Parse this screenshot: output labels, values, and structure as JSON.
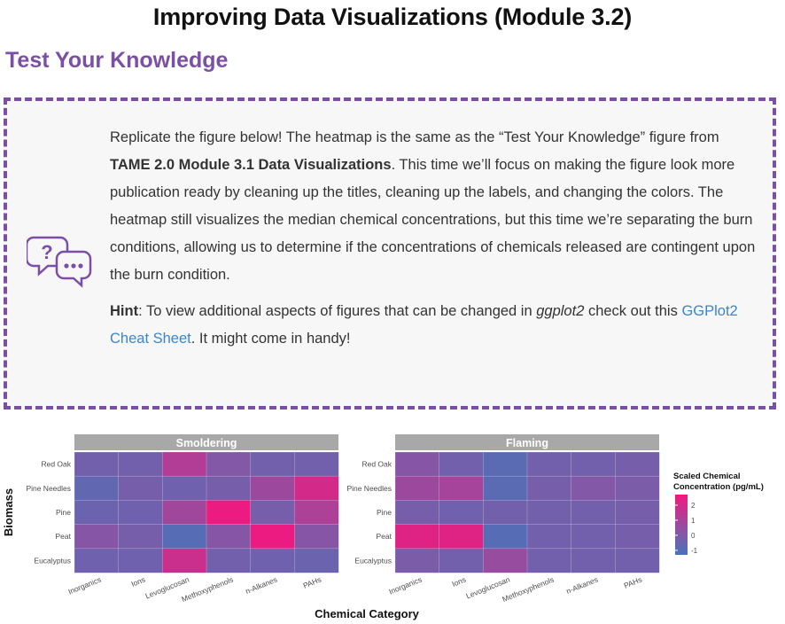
{
  "page": {
    "title": "Improving Data Visualizations (Module 3.2)",
    "section_title": "Test Your Knowledge"
  },
  "callout": {
    "icon": "question-speech-bubbles-icon",
    "accent_color": "#7b4fa6",
    "p1_a": "Replicate the figure below! The heatmap is the same as the “Test Your Knowledge” figure from ",
    "p1_bold": "TAME 2.0 Module 3.1 Data Visualizations",
    "p1_b": ". This time we’ll focus on making the figure look more publication ready by cleaning up the titles, cleaning up the labels, and changing the colors. The heatmap still visualizes the median chemical concentrations, but this time we’re separating the burn conditions, allowing us to determine if the concentrations of chemicals released are contingent upon the burn condition.",
    "hint_label": "Hint",
    "hint_a": ": To view additional aspects of figures that can be changed in ",
    "hint_italic": "ggplot2",
    "hint_b": " check out this ",
    "hint_link": "GGPlot2 Cheat Sheet",
    "hint_c": ". It might come in handy!"
  },
  "chart_data": {
    "type": "heatmap",
    "xlabel": "Chemical Category",
    "ylabel": "Biomass",
    "categories": [
      "Inorganics",
      "Ions",
      "Levoglucosan",
      "Methoxyphenols",
      "n-Alkanes",
      "PAHs"
    ],
    "rows": [
      "Red Oak",
      "Pine Needles",
      "Pine",
      "Peat",
      "Eucalyptus"
    ],
    "panels": [
      {
        "name": "Smoldering",
        "values": [
          [
            -0.3,
            -0.3,
            1.2,
            0.1,
            -0.3,
            -0.3
          ],
          [
            -0.7,
            -0.2,
            -0.4,
            -0.2,
            0.7,
            2.0
          ],
          [
            -0.5,
            -0.4,
            0.8,
            2.6,
            -0.2,
            1.1
          ],
          [
            0.2,
            -0.2,
            -1.0,
            0.2,
            2.6,
            0.2
          ],
          [
            -0.4,
            -0.4,
            1.8,
            -0.3,
            -0.4,
            -0.5
          ]
        ]
      },
      {
        "name": "Flaming",
        "values": [
          [
            0.2,
            -0.3,
            -0.9,
            -0.3,
            -0.3,
            -0.2
          ],
          [
            0.7,
            0.9,
            -0.9,
            -0.2,
            0.1,
            -0.1
          ],
          [
            -0.2,
            -0.4,
            -0.3,
            -0.3,
            -0.3,
            -0.2
          ],
          [
            2.3,
            2.3,
            -1.0,
            -0.3,
            -0.3,
            -0.2
          ],
          [
            -0.1,
            -0.3,
            0.6,
            -0.3,
            -0.3,
            -0.3
          ]
        ]
      }
    ],
    "legend": {
      "title_line1": "Scaled Chemical",
      "title_line2": "Concentration (pg/mL)",
      "ticks": [
        2,
        1,
        0,
        -1
      ],
      "range": [
        -1.3,
        2.7
      ],
      "low_color": "#4a72b8",
      "mid_color": "#7f5aa8",
      "high_color": "#f0197f"
    }
  }
}
